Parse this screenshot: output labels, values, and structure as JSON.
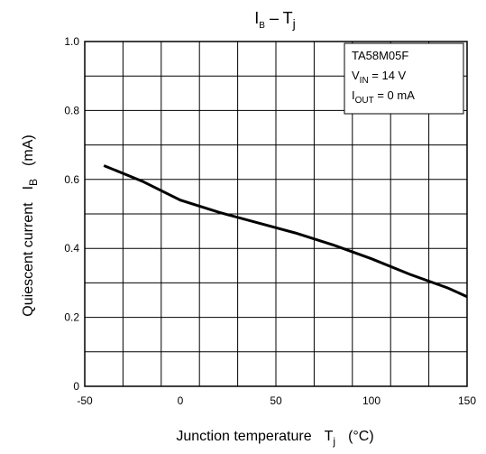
{
  "chart_data": {
    "type": "line",
    "title": {
      "main": "I",
      "main_sub": "B",
      "sep": " – T",
      "sep_sub": "j"
    },
    "xlabel": {
      "text": "Junction temperature",
      "symbol": "T",
      "symbol_sub": "j",
      "unit": "(°C)"
    },
    "ylabel": {
      "text": "Quiescent current",
      "symbol": "I",
      "symbol_sub": "B",
      "unit": "(mA)"
    },
    "xlim": [
      -50,
      150
    ],
    "ylim": [
      0,
      1.0
    ],
    "x_ticks": [
      "-50",
      "0",
      "50",
      "100",
      "150"
    ],
    "y_ticks": [
      "0",
      "0.2",
      "0.4",
      "0.6",
      "0.8",
      "1.0"
    ],
    "grid": true,
    "legend_box": {
      "line1": "TA58M05F",
      "line2": {
        "v": "V",
        "v_sub": "IN",
        "v_rest": " = 14 V"
      },
      "line3": {
        "i": "I",
        "i_sub": "OUT",
        "i_rest": " = 0 mA"
      }
    },
    "series": [
      {
        "x": [
          -40,
          -20,
          0,
          20,
          40,
          60,
          80,
          100,
          120,
          140,
          150
        ],
        "y": [
          0.64,
          0.595,
          0.54,
          0.505,
          0.475,
          0.445,
          0.41,
          0.37,
          0.325,
          0.285,
          0.26
        ]
      }
    ]
  }
}
